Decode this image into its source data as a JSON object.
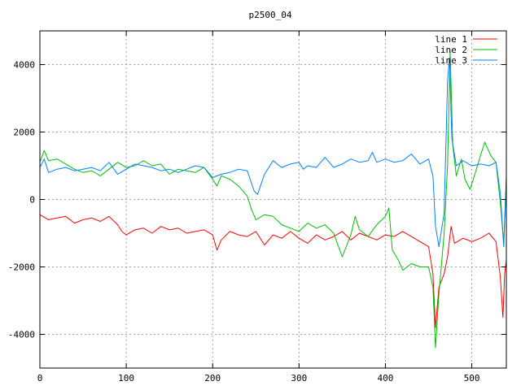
{
  "chart_data": {
    "type": "line",
    "title": "p2500_04",
    "xlim": [
      0,
      540
    ],
    "ylim": [
      -5000,
      5000
    ],
    "x_ticks": [
      0,
      100,
      200,
      300,
      400,
      500
    ],
    "y_ticks": [
      -4000,
      -2000,
      0,
      2000,
      4000
    ],
    "grid": true,
    "legend_position": "top-right",
    "series": [
      {
        "name": "line 1",
        "color": "#ff0000",
        "points": [
          [
            0,
            -450
          ],
          [
            10,
            -600
          ],
          [
            20,
            -550
          ],
          [
            30,
            -500
          ],
          [
            40,
            -700
          ],
          [
            50,
            -600
          ],
          [
            60,
            -550
          ],
          [
            70,
            -650
          ],
          [
            80,
            -500
          ],
          [
            90,
            -750
          ],
          [
            95,
            -950
          ],
          [
            100,
            -1050
          ],
          [
            110,
            -900
          ],
          [
            120,
            -850
          ],
          [
            130,
            -1000
          ],
          [
            140,
            -800
          ],
          [
            150,
            -900
          ],
          [
            160,
            -850
          ],
          [
            170,
            -1000
          ],
          [
            180,
            -950
          ],
          [
            190,
            -900
          ],
          [
            200,
            -1050
          ],
          [
            205,
            -1500
          ],
          [
            210,
            -1200
          ],
          [
            220,
            -950
          ],
          [
            230,
            -1050
          ],
          [
            240,
            -1100
          ],
          [
            250,
            -950
          ],
          [
            260,
            -1350
          ],
          [
            270,
            -1050
          ],
          [
            280,
            -1150
          ],
          [
            290,
            -950
          ],
          [
            300,
            -1150
          ],
          [
            310,
            -1300
          ],
          [
            320,
            -1050
          ],
          [
            330,
            -1200
          ],
          [
            340,
            -1100
          ],
          [
            350,
            -950
          ],
          [
            360,
            -1200
          ],
          [
            370,
            -1000
          ],
          [
            380,
            -1100
          ],
          [
            390,
            -1200
          ],
          [
            400,
            -1050
          ],
          [
            410,
            -1100
          ],
          [
            420,
            -950
          ],
          [
            430,
            -1100
          ],
          [
            440,
            -1250
          ],
          [
            450,
            -1400
          ],
          [
            455,
            -2200
          ],
          [
            458,
            -3800
          ],
          [
            462,
            -2600
          ],
          [
            468,
            -2200
          ],
          [
            472,
            -1700
          ],
          [
            476,
            -800
          ],
          [
            480,
            -1300
          ],
          [
            490,
            -1150
          ],
          [
            500,
            -1250
          ],
          [
            510,
            -1150
          ],
          [
            520,
            -1000
          ],
          [
            528,
            -1250
          ],
          [
            533,
            -2300
          ],
          [
            536,
            -3500
          ],
          [
            538,
            -2200
          ],
          [
            540,
            -1800
          ]
        ]
      },
      {
        "name": "line 2",
        "color": "#00c000",
        "points": [
          [
            0,
            1100
          ],
          [
            5,
            1450
          ],
          [
            10,
            1150
          ],
          [
            20,
            1200
          ],
          [
            30,
            1050
          ],
          [
            40,
            900
          ],
          [
            50,
            800
          ],
          [
            60,
            850
          ],
          [
            70,
            700
          ],
          [
            80,
            900
          ],
          [
            90,
            1100
          ],
          [
            100,
            950
          ],
          [
            110,
            1000
          ],
          [
            120,
            1150
          ],
          [
            130,
            1000
          ],
          [
            140,
            1050
          ],
          [
            150,
            750
          ],
          [
            160,
            900
          ],
          [
            170,
            850
          ],
          [
            180,
            800
          ],
          [
            190,
            950
          ],
          [
            200,
            600
          ],
          [
            205,
            400
          ],
          [
            210,
            700
          ],
          [
            220,
            600
          ],
          [
            230,
            400
          ],
          [
            240,
            100
          ],
          [
            245,
            -300
          ],
          [
            250,
            -600
          ],
          [
            260,
            -450
          ],
          [
            270,
            -500
          ],
          [
            280,
            -750
          ],
          [
            290,
            -850
          ],
          [
            300,
            -950
          ],
          [
            310,
            -700
          ],
          [
            320,
            -850
          ],
          [
            330,
            -750
          ],
          [
            340,
            -1000
          ],
          [
            350,
            -1700
          ],
          [
            360,
            -1050
          ],
          [
            365,
            -500
          ],
          [
            370,
            -900
          ],
          [
            380,
            -1100
          ],
          [
            390,
            -750
          ],
          [
            400,
            -500
          ],
          [
            404,
            -250
          ],
          [
            408,
            -1500
          ],
          [
            415,
            -1800
          ],
          [
            420,
            -2100
          ],
          [
            430,
            -1900
          ],
          [
            440,
            -2000
          ],
          [
            450,
            -2000
          ],
          [
            455,
            -2600
          ],
          [
            458,
            -4400
          ],
          [
            462,
            -2800
          ],
          [
            468,
            -1000
          ],
          [
            472,
            1000
          ],
          [
            475,
            4400
          ],
          [
            478,
            1600
          ],
          [
            482,
            700
          ],
          [
            488,
            1200
          ],
          [
            492,
            600
          ],
          [
            498,
            300
          ],
          [
            503,
            700
          ],
          [
            510,
            1300
          ],
          [
            515,
            1700
          ],
          [
            522,
            1300
          ],
          [
            528,
            1100
          ],
          [
            533,
            -100
          ],
          [
            537,
            -1300
          ],
          [
            540,
            700
          ]
        ]
      },
      {
        "name": "line 3",
        "color": "#0080ff",
        "points": [
          [
            0,
            950
          ],
          [
            5,
            1200
          ],
          [
            10,
            800
          ],
          [
            20,
            900
          ],
          [
            30,
            950
          ],
          [
            40,
            850
          ],
          [
            50,
            900
          ],
          [
            60,
            950
          ],
          [
            70,
            850
          ],
          [
            80,
            1100
          ],
          [
            90,
            750
          ],
          [
            100,
            900
          ],
          [
            110,
            1050
          ],
          [
            120,
            1000
          ],
          [
            130,
            950
          ],
          [
            140,
            850
          ],
          [
            150,
            900
          ],
          [
            160,
            800
          ],
          [
            170,
            900
          ],
          [
            180,
            1000
          ],
          [
            190,
            950
          ],
          [
            200,
            650
          ],
          [
            210,
            750
          ],
          [
            220,
            800
          ],
          [
            230,
            900
          ],
          [
            240,
            850
          ],
          [
            248,
            250
          ],
          [
            252,
            150
          ],
          [
            260,
            750
          ],
          [
            270,
            1150
          ],
          [
            280,
            950
          ],
          [
            290,
            1050
          ],
          [
            300,
            1100
          ],
          [
            305,
            900
          ],
          [
            310,
            1000
          ],
          [
            320,
            950
          ],
          [
            330,
            1250
          ],
          [
            340,
            950
          ],
          [
            350,
            1050
          ],
          [
            360,
            1200
          ],
          [
            370,
            1100
          ],
          [
            380,
            1150
          ],
          [
            385,
            1400
          ],
          [
            390,
            1100
          ],
          [
            400,
            1200
          ],
          [
            410,
            1100
          ],
          [
            420,
            1150
          ],
          [
            430,
            1350
          ],
          [
            440,
            1050
          ],
          [
            450,
            1200
          ],
          [
            455,
            700
          ],
          [
            458,
            -800
          ],
          [
            462,
            -1400
          ],
          [
            468,
            -400
          ],
          [
            472,
            3500
          ],
          [
            474,
            4200
          ],
          [
            477,
            1800
          ],
          [
            482,
            1000
          ],
          [
            490,
            1150
          ],
          [
            500,
            1000
          ],
          [
            510,
            1050
          ],
          [
            520,
            1000
          ],
          [
            528,
            1100
          ],
          [
            533,
            200
          ],
          [
            537,
            -1400
          ],
          [
            540,
            600
          ]
        ]
      }
    ]
  }
}
